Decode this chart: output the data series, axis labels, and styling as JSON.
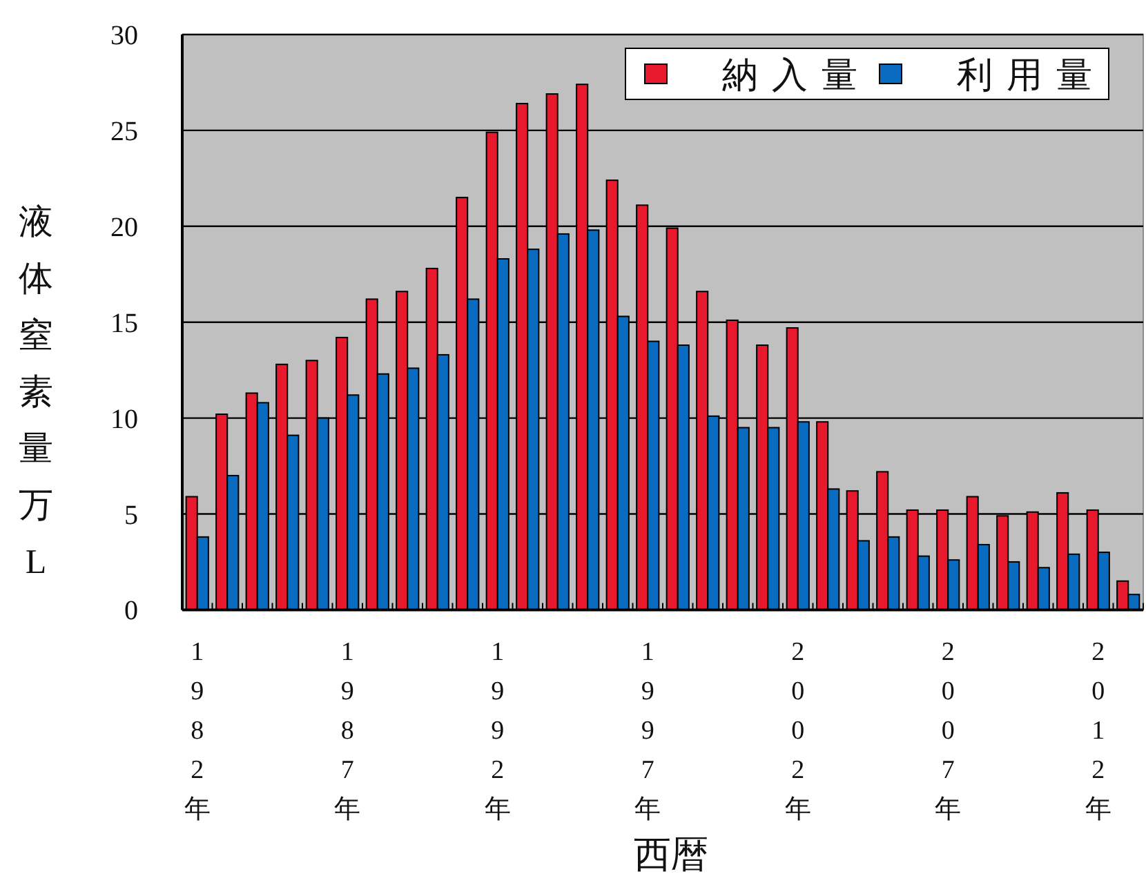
{
  "chart_data": {
    "type": "bar",
    "categories": [
      "1982年",
      null,
      null,
      null,
      null,
      "1987年",
      null,
      null,
      null,
      null,
      "1992年",
      null,
      null,
      null,
      null,
      "1997年",
      null,
      null,
      null,
      null,
      "2002年",
      null,
      null,
      null,
      null,
      "2007年",
      null,
      null,
      null,
      null,
      "2012年",
      null
    ],
    "series": [
      {
        "name": "納入量",
        "color": "#e8192c",
        "values": [
          5.9,
          10.2,
          11.3,
          12.8,
          13.0,
          14.2,
          16.2,
          16.6,
          17.8,
          21.5,
          24.9,
          26.4,
          26.9,
          27.4,
          22.4,
          21.1,
          19.9,
          16.6,
          15.1,
          13.8,
          14.7,
          9.8,
          6.2,
          7.2,
          5.2,
          5.2,
          5.9,
          4.9,
          5.1,
          6.1,
          5.2,
          1.5
        ]
      },
      {
        "name": "利用量",
        "color": "#0a6cc0",
        "values": [
          3.8,
          7.0,
          10.8,
          9.1,
          10.0,
          11.2,
          12.3,
          12.6,
          13.3,
          16.2,
          18.3,
          18.8,
          19.6,
          19.8,
          15.3,
          14.0,
          13.8,
          10.1,
          9.5,
          9.5,
          9.8,
          6.3,
          3.6,
          3.8,
          2.8,
          2.6,
          3.4,
          2.5,
          2.2,
          2.9,
          3.0,
          0.8
        ]
      }
    ],
    "xlabel": "西暦",
    "ylabel": "液体窒素量万L",
    "ylim": [
      0,
      30
    ],
    "yticks": [
      0,
      5,
      10,
      15,
      20,
      25,
      30
    ],
    "grid": "y",
    "legend": "top right"
  }
}
